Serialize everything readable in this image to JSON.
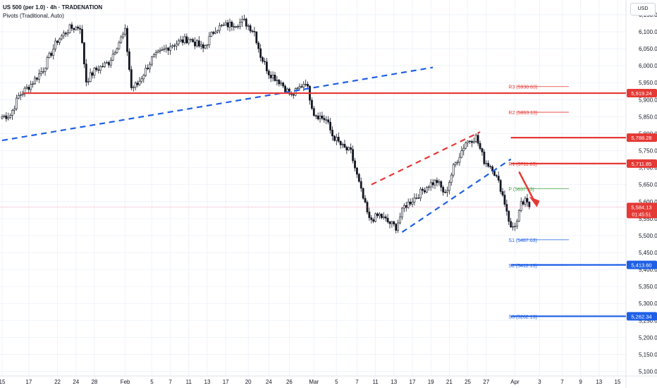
{
  "header": {
    "title": "US 500 (per 1.0) · 4h · TRADENATION",
    "indicator": "Pivots (Traditional, Auto)",
    "currency": "USD"
  },
  "colors": {
    "up": "#131722",
    "down": "#131722",
    "resistance": "#e53935",
    "support": "#1e5fe6",
    "pivot": "#43a047",
    "price_line": "#f06292",
    "grid": "#f0f3fa"
  },
  "chart_data": {
    "type": "candlestick",
    "timeframe": "4h",
    "ylim": [
      5100,
      6180
    ],
    "yticks": [
      5100,
      5150,
      5200,
      5250,
      5300,
      5350,
      5400,
      5450,
      5500,
      5550,
      5600,
      5650,
      5700,
      5750,
      5800,
      5850,
      5900,
      5950,
      6000,
      6050,
      6100,
      6150
    ],
    "ytick_labels": [
      "5,100.00",
      "5,150.00",
      "5,200.00",
      "5,250.00",
      "5,300.00",
      "5,350.00",
      "5,400.00",
      "5,450.00",
      "5,500.00",
      "5,550.00",
      "5,600.00",
      "5,650.00",
      "5,700.00",
      "5,750.00",
      "5,800.00",
      "5,850.00",
      "5,900.00",
      "5,950.00",
      "6,000.00",
      "6,050.00",
      "6,100.00",
      "6,150.00"
    ],
    "xticks": [
      "15",
      "17",
      "22",
      "24",
      "28",
      "Feb",
      "5",
      "7",
      "11",
      "13",
      "17",
      "20",
      "24",
      "26",
      "Mar",
      "5",
      "7",
      "11",
      "13",
      "17",
      "19",
      "21",
      "25",
      "27",
      "Apr",
      "3",
      "7",
      "9",
      "13",
      "15"
    ],
    "xtick_bars": [
      0,
      13,
      27,
      36,
      45,
      60,
      73,
      82,
      91,
      100,
      109,
      120,
      130,
      140,
      152,
      163,
      173,
      182,
      191,
      200,
      209,
      218,
      227,
      236,
      250,
      262,
      273,
      282,
      291,
      300
    ],
    "bars_total": 310,
    "candle_waypoints": [
      [
        0,
        5850
      ],
      [
        4,
        5855
      ],
      [
        8,
        5910
      ],
      [
        14,
        5945
      ],
      [
        20,
        5990
      ],
      [
        27,
        6075
      ],
      [
        33,
        6110
      ],
      [
        38,
        6115
      ],
      [
        41,
        5955
      ],
      [
        45,
        5985
      ],
      [
        52,
        6010
      ],
      [
        56,
        6060
      ],
      [
        60,
        6100
      ],
      [
        63,
        5935
      ],
      [
        66,
        5945
      ],
      [
        73,
        6020
      ],
      [
        82,
        6060
      ],
      [
        91,
        6080
      ],
      [
        98,
        6050
      ],
      [
        104,
        6110
      ],
      [
        110,
        6120
      ],
      [
        118,
        6130
      ],
      [
        123,
        6100
      ],
      [
        126,
        6030
      ],
      [
        130,
        5980
      ],
      [
        136,
        5950
      ],
      [
        141,
        5910
      ],
      [
        148,
        5955
      ],
      [
        152,
        5860
      ],
      [
        158,
        5840
      ],
      [
        161,
        5795
      ],
      [
        166,
        5760
      ],
      [
        170,
        5745
      ],
      [
        175,
        5630
      ],
      [
        179,
        5545
      ],
      [
        184,
        5560
      ],
      [
        188,
        5540
      ],
      [
        192,
        5525
      ],
      [
        196,
        5585
      ],
      [
        202,
        5615
      ],
      [
        208,
        5650
      ],
      [
        212,
        5660
      ],
      [
        216,
        5620
      ],
      [
        220,
        5700
      ],
      [
        226,
        5775
      ],
      [
        231,
        5790
      ],
      [
        235,
        5720
      ],
      [
        239,
        5700
      ],
      [
        243,
        5640
      ],
      [
        246,
        5575
      ],
      [
        248,
        5520
      ],
      [
        251,
        5540
      ],
      [
        253,
        5590
      ],
      [
        255,
        5600
      ],
      [
        257,
        5584
      ]
    ],
    "current_price": 5584.13,
    "current_price_label": "5,584.13",
    "countdown": "01:45:51",
    "horizontal_levels": [
      {
        "name": "5919.24",
        "price": 5919.24,
        "label": "5,919.24",
        "color": "#e53935",
        "from_bar": 10
      },
      {
        "name": "5788.28",
        "price": 5788.28,
        "label": "5,788.28",
        "color": "#e53935",
        "from_bar": 248
      },
      {
        "name": "5711.85",
        "price": 5711.85,
        "label": "5,711.85",
        "color": "#e53935",
        "from_bar": 248
      },
      {
        "name": "5413.60",
        "price": 5413.6,
        "label": "5,413.60",
        "color": "#1e5fe6",
        "from_bar": 248
      },
      {
        "name": "5262.34",
        "price": 5262.34,
        "label": "5,262.34",
        "color": "#1e5fe6",
        "from_bar": 248
      }
    ],
    "pivots": [
      {
        "label": "R3 (5938.63)",
        "price": 5938.63,
        "color": "#e53935"
      },
      {
        "label": "R2 (5863.13)",
        "price": 5863.13,
        "color": "#e53935"
      },
      {
        "label": "R1 (5711.85)",
        "price": 5711.85,
        "color": "#e53935"
      },
      {
        "label": "P (5637.63)",
        "price": 5637.63,
        "color": "#43a047"
      },
      {
        "label": "S1 (5487.63)",
        "price": 5487.63,
        "color": "#1e5fe6"
      },
      {
        "label": "S2 (5412.13)",
        "price": 5412.13,
        "color": "#1e5fe6"
      },
      {
        "label": "S3 (5262.13)",
        "price": 5262.13,
        "color": "#1e5fe6"
      }
    ],
    "trendlines": [
      {
        "name": "long-trend",
        "color": "#1e5fe6",
        "points": [
          [
            0,
            5780
          ],
          [
            210,
            5995
          ]
        ]
      },
      {
        "name": "channel-upper",
        "color": "#e53935",
        "points": [
          [
            180,
            5650
          ],
          [
            233,
            5805
          ]
        ]
      },
      {
        "name": "channel-lower",
        "color": "#1e5fe6",
        "points": [
          [
            195,
            5510
          ],
          [
            248,
            5725
          ]
        ]
      }
    ],
    "annotation": {
      "type": "arrow",
      "color": "#e53935",
      "from": [
        252,
        5688
      ],
      "to": [
        260,
        5590
      ]
    }
  }
}
